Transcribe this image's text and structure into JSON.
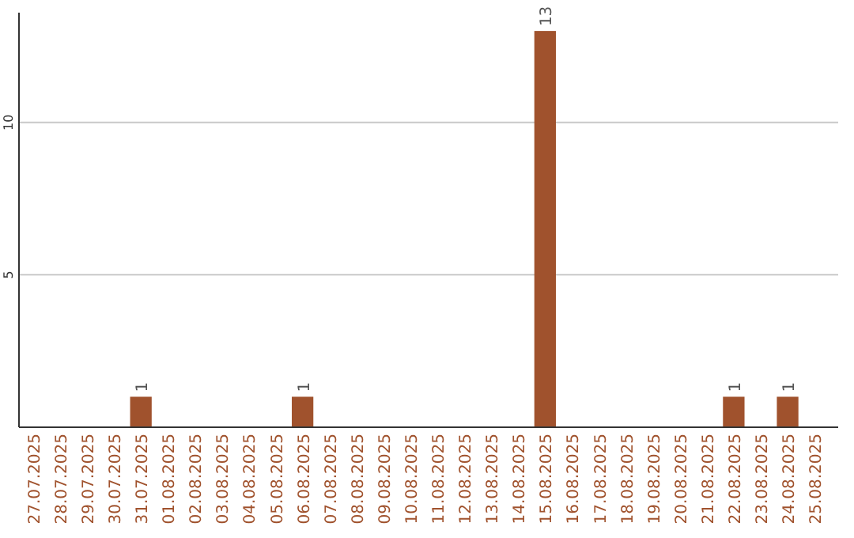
{
  "chart_data": {
    "type": "bar",
    "categories": [
      "27.07.2025",
      "28.07.2025",
      "29.07.2025",
      "30.07.2025",
      "31.07.2025",
      "01.08.2025",
      "02.08.2025",
      "03.08.2025",
      "04.08.2025",
      "05.08.2025",
      "06.08.2025",
      "07.08.2025",
      "08.08.2025",
      "09.08.2025",
      "10.08.2025",
      "11.08.2025",
      "12.08.2025",
      "13.08.2025",
      "14.08.2025",
      "15.08.2025",
      "16.08.2025",
      "17.08.2025",
      "18.08.2025",
      "19.08.2025",
      "20.08.2025",
      "21.08.2025",
      "22.08.2025",
      "23.08.2025",
      "24.08.2025",
      "25.08.2025"
    ],
    "values": [
      0,
      0,
      0,
      0,
      1,
      0,
      0,
      0,
      0,
      0,
      1,
      0,
      0,
      0,
      0,
      0,
      0,
      0,
      0,
      13,
      0,
      0,
      0,
      0,
      0,
      0,
      1,
      0,
      1,
      0
    ],
    "value_labels": [
      null,
      null,
      null,
      null,
      "1",
      null,
      null,
      null,
      null,
      null,
      "1",
      null,
      null,
      null,
      null,
      null,
      null,
      null,
      null,
      "13",
      null,
      null,
      null,
      null,
      null,
      null,
      "1",
      null,
      "1",
      null
    ],
    "color": "#a0522d",
    "ylim": [
      0,
      13.6
    ],
    "yticks": [
      5,
      10
    ],
    "grid": "y"
  }
}
